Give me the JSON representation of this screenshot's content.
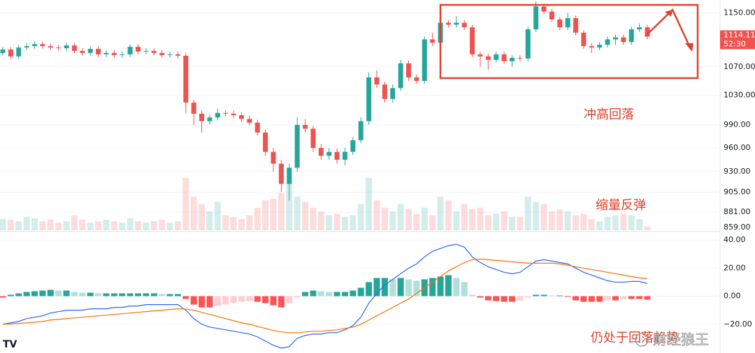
{
  "chart_data": [
    {
      "type": "candlestick",
      "log_scale": true,
      "grid": true,
      "up_color": "#26a69a",
      "down_color": "#ef5350",
      "ylim": [
        860,
        1170
      ],
      "yticks": [
        {
          "value": 1150,
          "label": "1150.00"
        },
        {
          "value": 1070,
          "label": "1070.00"
        },
        {
          "value": 1030,
          "label": "1030.00"
        },
        {
          "value": 990,
          "label": "990.00"
        },
        {
          "value": 960,
          "label": "960.00"
        },
        {
          "value": 930,
          "label": "930.00"
        },
        {
          "value": 905,
          "label": "905.00"
        },
        {
          "value": 881,
          "label": "881.00"
        },
        {
          "value": 859,
          "label": "859.00"
        }
      ],
      "open": [
        1090,
        1095,
        1085,
        1098,
        1100,
        1103,
        1100,
        1098,
        1097,
        1101,
        1093,
        1090,
        1096,
        1088,
        1090,
        1087,
        1088,
        1099,
        1092,
        1093,
        1090,
        1087,
        1088,
        1086,
        1020,
        1005,
        995,
        1000,
        1006,
        1005,
        1003,
        998,
        993,
        980,
        955,
        940,
        915,
        935,
        990,
        985,
        960,
        950,
        955,
        945,
        955,
        970,
        995,
        1055,
        1045,
        1025,
        1040,
        1075,
        1055,
        1050,
        1110,
        1105,
        1135,
        1132,
        1135,
        1128,
        1088,
        1085,
        1080,
        1088,
        1078,
        1083,
        1082,
        1125,
        1160,
        1152,
        1140,
        1128,
        1142,
        1120,
        1100,
        1098,
        1102,
        1110,
        1113,
        1106,
        1125,
        1128
      ],
      "high": [
        1099,
        1099,
        1102,
        1104,
        1107,
        1107,
        1104,
        1102,
        1105,
        1105,
        1097,
        1100,
        1100,
        1094,
        1094,
        1092,
        1103,
        1103,
        1097,
        1097,
        1094,
        1092,
        1092,
        1090,
        1024,
        1009,
        1004,
        1012,
        1010,
        1009,
        1007,
        1002,
        997,
        984,
        960,
        945,
        940,
        1000,
        998,
        989,
        965,
        960,
        959,
        960,
        974,
        1000,
        1062,
        1065,
        1049,
        1045,
        1080,
        1079,
        1059,
        1114,
        1120,
        1140,
        1139,
        1145,
        1139,
        1132,
        1092,
        1089,
        1092,
        1092,
        1087,
        1087,
        1129,
        1168,
        1164,
        1156,
        1144,
        1150,
        1146,
        1124,
        1104,
        1106,
        1114,
        1117,
        1117,
        1129,
        1134,
        1132
      ],
      "low": [
        1086,
        1081,
        1081,
        1094,
        1096,
        1096,
        1094,
        1093,
        1093,
        1089,
        1086,
        1086,
        1084,
        1084,
        1083,
        1083,
        1084,
        1088,
        1088,
        1086,
        1083,
        1083,
        1082,
        1005,
        990,
        980,
        991,
        996,
        1001,
        999,
        994,
        989,
        976,
        950,
        930,
        905,
        895,
        930,
        980,
        955,
        945,
        945,
        940,
        938,
        951,
        966,
        990,
        1040,
        1020,
        1020,
        1036,
        1050,
        1046,
        1046,
        1100,
        1101,
        1128,
        1128,
        1124,
        1084,
        1070,
        1066,
        1076,
        1074,
        1070,
        1078,
        1078,
        1121,
        1148,
        1136,
        1124,
        1124,
        1116,
        1096,
        1090,
        1094,
        1098,
        1102,
        1102,
        1102,
        1121,
        1110
      ],
      "close": [
        1095,
        1085,
        1098,
        1100,
        1103,
        1100,
        1098,
        1097,
        1101,
        1093,
        1090,
        1096,
        1088,
        1090,
        1087,
        1088,
        1099,
        1092,
        1093,
        1090,
        1087,
        1088,
        1086,
        1020,
        1005,
        995,
        1000,
        1006,
        1005,
        1003,
        998,
        993,
        980,
        955,
        940,
        915,
        935,
        990,
        985,
        960,
        950,
        955,
        945,
        955,
        970,
        995,
        1055,
        1045,
        1025,
        1040,
        1075,
        1055,
        1050,
        1110,
        1105,
        1135,
        1132,
        1135,
        1128,
        1088,
        1085,
        1080,
        1088,
        1078,
        1083,
        1082,
        1125,
        1160,
        1152,
        1140,
        1128,
        1142,
        1120,
        1100,
        1098,
        1102,
        1110,
        1113,
        1106,
        1125,
        1128,
        1114
      ],
      "volume": [
        15,
        14,
        12,
        18,
        16,
        12,
        14,
        10,
        12,
        20,
        14,
        10,
        12,
        14,
        12,
        10,
        16,
        12,
        10,
        12,
        14,
        10,
        12,
        70,
        45,
        35,
        25,
        38,
        20,
        18,
        15,
        20,
        30,
        40,
        42,
        50,
        65,
        45,
        38,
        30,
        25,
        20,
        22,
        18,
        20,
        35,
        70,
        40,
        30,
        25,
        35,
        28,
        22,
        30,
        20,
        45,
        40,
        25,
        35,
        28,
        30,
        20,
        22,
        25,
        18,
        18,
        45,
        38,
        35,
        25,
        28,
        25,
        20,
        22,
        15,
        12,
        18,
        20,
        22,
        20,
        15,
        5
      ],
      "last_price": 1114.11,
      "countdown": "52:30",
      "annotations": [
        "冲高回落",
        "缩量反弹",
        "仍处于回落趋势"
      ]
    },
    {
      "type": "macd",
      "grid": true,
      "ylim": [
        -40.5,
        45.5
      ],
      "yticks": [
        {
          "value": 40,
          "label": "40.00"
        },
        {
          "value": 20,
          "label": "20.00"
        },
        {
          "value": 0,
          "label": "0.00"
        },
        {
          "value": -20,
          "label": "−20.00"
        }
      ],
      "series": [
        {
          "color": "#2962ff",
          "values": [
            -20,
            -19,
            -18,
            -16,
            -15,
            -14,
            -12,
            -11,
            -10,
            -10,
            -10,
            -9,
            -9,
            -9,
            -8,
            -8,
            -7,
            -7,
            -6,
            -6,
            -6,
            -6,
            -6,
            -10,
            -16,
            -20,
            -22,
            -23,
            -24,
            -25,
            -26,
            -27,
            -29,
            -32,
            -35,
            -37,
            -36,
            -30,
            -28,
            -27,
            -27,
            -26,
            -26,
            -24,
            -21,
            -15,
            -5,
            2,
            8,
            12,
            16,
            20,
            23,
            28,
            32,
            34,
            36,
            37,
            35,
            28,
            24,
            21,
            19,
            17,
            16,
            17,
            21,
            25,
            26,
            25,
            24,
            23,
            20,
            17,
            15,
            13,
            11,
            10,
            10,
            10.5,
            10.5,
            9
          ]
        },
        {
          "color": "#ff6d00",
          "values": [
            -20,
            -19.8,
            -19.5,
            -19,
            -18.5,
            -18,
            -17,
            -16.5,
            -16,
            -15.5,
            -15,
            -14.5,
            -14,
            -13.5,
            -13,
            -12.5,
            -12,
            -11.5,
            -11,
            -10.5,
            -10,
            -9.5,
            -9,
            -9.2,
            -10,
            -11.5,
            -13,
            -14.5,
            -16,
            -17.5,
            -19,
            -20,
            -21.5,
            -23,
            -24.5,
            -25.5,
            -26,
            -26,
            -25.5,
            -25,
            -25,
            -24.5,
            -24,
            -23,
            -22,
            -20,
            -17,
            -14,
            -11,
            -8,
            -5,
            -2,
            2,
            6,
            10,
            14,
            18,
            21,
            24,
            26,
            26.5,
            26,
            25.5,
            25,
            24.5,
            24,
            23.5,
            23.5,
            23.5,
            23.5,
            23,
            22,
            21,
            20,
            19,
            18,
            17,
            16,
            15,
            14,
            13,
            12.5
          ]
        }
      ],
      "histogram": {
        "values": [
          -1,
          1,
          2,
          3,
          3.5,
          4,
          4.5,
          4,
          4,
          3,
          2.5,
          2.5,
          2,
          2,
          2,
          2,
          2,
          2,
          2,
          2,
          1.5,
          1.5,
          1.5,
          -2,
          -6,
          -8,
          -8,
          -7,
          -6,
          -5,
          -4,
          -3.5,
          -4,
          -5,
          -6.5,
          -8,
          -5,
          -1,
          3,
          4,
          3.5,
          3,
          3,
          3,
          4,
          6,
          10,
          13,
          13,
          12,
          13,
          12,
          11,
          12,
          13,
          14,
          15,
          13,
          10,
          1,
          -1,
          -3,
          -3.5,
          -4,
          -4,
          -3,
          -1,
          1,
          1,
          0.5,
          0.5,
          -0.5,
          -3,
          -4,
          -4,
          -4,
          -3,
          -3,
          -2,
          -2,
          -2,
          -2.5
        ]
      }
    }
  ],
  "watermark": "财经狼王"
}
